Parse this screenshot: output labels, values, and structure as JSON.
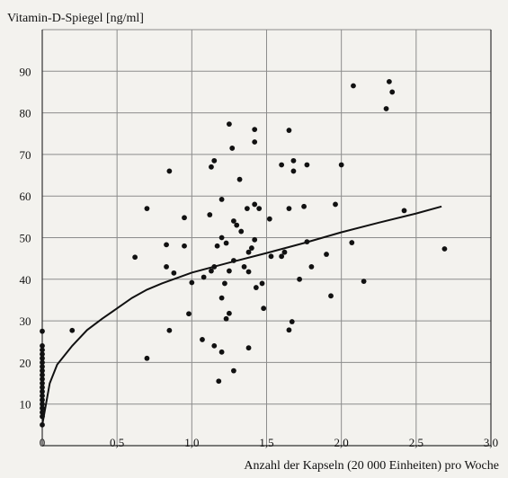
{
  "chart_data": {
    "type": "scatter",
    "ylabel": "Vitamin-D-Spiegel [ng/ml]",
    "xlabel": "Anzahl der Kapseln (20 000 Einheiten) pro Woche",
    "xlim": [
      0,
      3.0
    ],
    "ylim": [
      0,
      100
    ],
    "x_ticks": [
      0,
      0.5,
      1.0,
      1.5,
      2.0,
      2.5,
      3.0
    ],
    "x_tick_labels": [
      "0",
      "0,5",
      "1,0",
      "1,5",
      "2,0",
      "2,5",
      "3,0"
    ],
    "y_ticks": [
      10,
      20,
      30,
      40,
      50,
      60,
      70,
      80,
      90
    ],
    "y_tick_labels": [
      "10",
      "20",
      "30",
      "40",
      "50",
      "60",
      "70",
      "80",
      "90"
    ],
    "grid": true,
    "legend": "none",
    "colors": {
      "background": "#f3f2ee",
      "grid": "#8c8c8c",
      "points": "#111111",
      "curve": "#111111"
    },
    "series": [
      {
        "points": [
          [
            0,
            27.5
          ],
          [
            0,
            24
          ],
          [
            0,
            23
          ],
          [
            0,
            22
          ],
          [
            0,
            21
          ],
          [
            0,
            20
          ],
          [
            0,
            19
          ],
          [
            0,
            18
          ],
          [
            0,
            17
          ],
          [
            0,
            16
          ],
          [
            0,
            15
          ],
          [
            0,
            14
          ],
          [
            0,
            13
          ],
          [
            0,
            12
          ],
          [
            0,
            11
          ],
          [
            0,
            10
          ],
          [
            0,
            9
          ],
          [
            0,
            8
          ],
          [
            0,
            7
          ],
          [
            0,
            5
          ],
          [
            0.2,
            27.7
          ],
          [
            0.62,
            45.3
          ],
          [
            0.7,
            57
          ],
          [
            0.7,
            21
          ],
          [
            0.83,
            48.3
          ],
          [
            0.83,
            43
          ],
          [
            0.85,
            27.7
          ],
          [
            0.85,
            66
          ],
          [
            0.88,
            41.5
          ],
          [
            0.95,
            54.8
          ],
          [
            0.95,
            48
          ],
          [
            0.98,
            31.7
          ],
          [
            1.0,
            39.2
          ],
          [
            1.07,
            25.5
          ],
          [
            1.08,
            40.5
          ],
          [
            1.12,
            55.5
          ],
          [
            1.13,
            42
          ],
          [
            1.13,
            67
          ],
          [
            1.15,
            68.5
          ],
          [
            1.15,
            43
          ],
          [
            1.15,
            24
          ],
          [
            1.17,
            48
          ],
          [
            1.18,
            15.5
          ],
          [
            1.2,
            59.2
          ],
          [
            1.2,
            50
          ],
          [
            1.2,
            35.5
          ],
          [
            1.2,
            22.5
          ],
          [
            1.22,
            39
          ],
          [
            1.23,
            48.7
          ],
          [
            1.23,
            30.5
          ],
          [
            1.25,
            77.3
          ],
          [
            1.25,
            42
          ],
          [
            1.25,
            31.8
          ],
          [
            1.27,
            71.5
          ],
          [
            1.28,
            54
          ],
          [
            1.28,
            44.5
          ],
          [
            1.28,
            18
          ],
          [
            1.3,
            53
          ],
          [
            1.32,
            64
          ],
          [
            1.33,
            51.5
          ],
          [
            1.35,
            43
          ],
          [
            1.37,
            57
          ],
          [
            1.38,
            46.5
          ],
          [
            1.38,
            41.8
          ],
          [
            1.38,
            23.5
          ],
          [
            1.4,
            47.5
          ],
          [
            1.42,
            76
          ],
          [
            1.42,
            73
          ],
          [
            1.42,
            58
          ],
          [
            1.42,
            49.5
          ],
          [
            1.43,
            38
          ],
          [
            1.45,
            57
          ],
          [
            1.47,
            39
          ],
          [
            1.48,
            33
          ],
          [
            1.52,
            54.5
          ],
          [
            1.53,
            45.5
          ],
          [
            1.6,
            67.5
          ],
          [
            1.6,
            45.5
          ],
          [
            1.62,
            46.5
          ],
          [
            1.65,
            75.8
          ],
          [
            1.65,
            57
          ],
          [
            1.65,
            27.8
          ],
          [
            1.67,
            29.8
          ],
          [
            1.68,
            68.5
          ],
          [
            1.68,
            66
          ],
          [
            1.72,
            40
          ],
          [
            1.75,
            57.5
          ],
          [
            1.77,
            67.5
          ],
          [
            1.77,
            49
          ],
          [
            1.8,
            43
          ],
          [
            1.9,
            46
          ],
          [
            1.93,
            36
          ],
          [
            1.96,
            58
          ],
          [
            2.0,
            67.5
          ],
          [
            2.07,
            48.8
          ],
          [
            2.08,
            86.5
          ],
          [
            2.15,
            39.5
          ],
          [
            2.3,
            81
          ],
          [
            2.32,
            87.5
          ],
          [
            2.34,
            85
          ],
          [
            2.42,
            56.5
          ],
          [
            2.69,
            47.3
          ]
        ]
      },
      {
        "type": "line",
        "curve": [
          [
            0,
            5
          ],
          [
            0.05,
            15
          ],
          [
            0.1,
            19.5
          ],
          [
            0.2,
            24
          ],
          [
            0.3,
            27.8
          ],
          [
            0.4,
            30.5
          ],
          [
            0.5,
            33
          ],
          [
            0.6,
            35.5
          ],
          [
            0.7,
            37.5
          ],
          [
            0.8,
            39
          ],
          [
            0.9,
            40.3
          ],
          [
            1.0,
            41.6
          ],
          [
            1.25,
            44
          ],
          [
            1.5,
            46.3
          ],
          [
            1.75,
            48.7
          ],
          [
            2.0,
            51.3
          ],
          [
            2.25,
            53.6
          ],
          [
            2.5,
            55.8
          ],
          [
            2.67,
            57.5
          ]
        ]
      }
    ]
  }
}
